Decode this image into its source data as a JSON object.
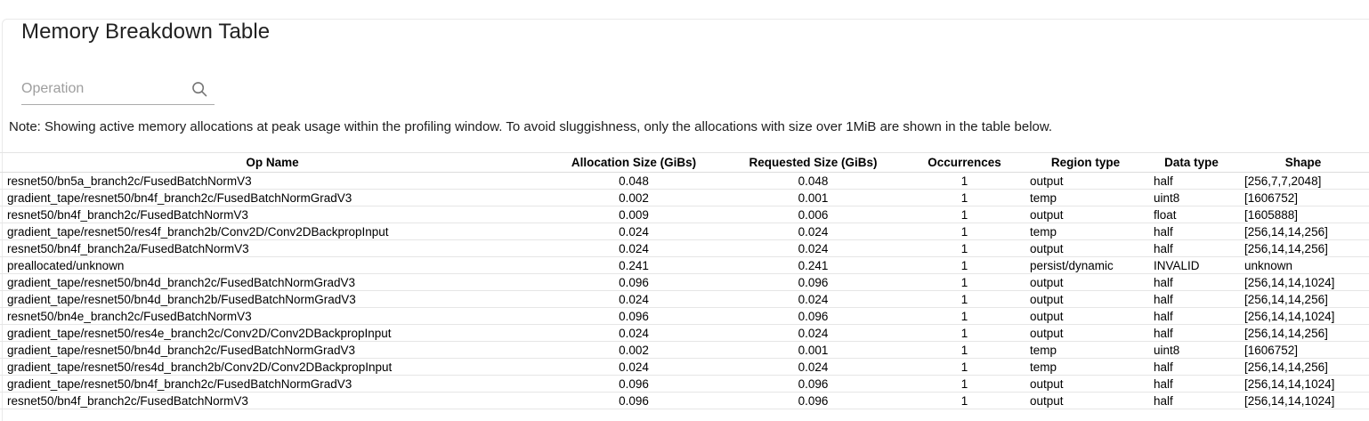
{
  "page": {
    "title": "Memory Breakdown Table"
  },
  "search": {
    "placeholder": "Operation",
    "value": "",
    "icon": "search-icon"
  },
  "note": "Note: Showing active memory allocations at peak usage within the profiling window. To avoid sluggishness, only the allocations with size over 1MiB are shown in the table below.",
  "table": {
    "columns": [
      "Op Name",
      "Allocation Size (GiBs)",
      "Requested Size (GiBs)",
      "Occurrences",
      "Region type",
      "Data type",
      "Shape"
    ],
    "rows": [
      [
        "resnet50/bn5a_branch2c/FusedBatchNormV3",
        "0.048",
        "0.048",
        "1",
        "output",
        "half",
        "[256,7,7,2048]"
      ],
      [
        "gradient_tape/resnet50/bn4f_branch2c/FusedBatchNormGradV3",
        "0.002",
        "0.001",
        "1",
        "temp",
        "uint8",
        "[1606752]"
      ],
      [
        "resnet50/bn4f_branch2c/FusedBatchNormV3",
        "0.009",
        "0.006",
        "1",
        "output",
        "float",
        "[1605888]"
      ],
      [
        "gradient_tape/resnet50/res4f_branch2b/Conv2D/Conv2DBackpropInput",
        "0.024",
        "0.024",
        "1",
        "temp",
        "half",
        "[256,14,14,256]"
      ],
      [
        "resnet50/bn4f_branch2a/FusedBatchNormV3",
        "0.024",
        "0.024",
        "1",
        "output",
        "half",
        "[256,14,14,256]"
      ],
      [
        "preallocated/unknown",
        "0.241",
        "0.241",
        "1",
        "persist/dynamic",
        "INVALID",
        "unknown"
      ],
      [
        "gradient_tape/resnet50/bn4d_branch2c/FusedBatchNormGradV3",
        "0.096",
        "0.096",
        "1",
        "output",
        "half",
        "[256,14,14,1024]"
      ],
      [
        "gradient_tape/resnet50/bn4d_branch2b/FusedBatchNormGradV3",
        "0.024",
        "0.024",
        "1",
        "output",
        "half",
        "[256,14,14,256]"
      ],
      [
        "resnet50/bn4e_branch2c/FusedBatchNormV3",
        "0.096",
        "0.096",
        "1",
        "output",
        "half",
        "[256,14,14,1024]"
      ],
      [
        "gradient_tape/resnet50/res4e_branch2c/Conv2D/Conv2DBackpropInput",
        "0.024",
        "0.024",
        "1",
        "output",
        "half",
        "[256,14,14,256]"
      ],
      [
        "gradient_tape/resnet50/bn4d_branch2c/FusedBatchNormGradV3",
        "0.002",
        "0.001",
        "1",
        "temp",
        "uint8",
        "[1606752]"
      ],
      [
        "gradient_tape/resnet50/res4d_branch2b/Conv2D/Conv2DBackpropInput",
        "0.024",
        "0.024",
        "1",
        "temp",
        "half",
        "[256,14,14,256]"
      ],
      [
        "gradient_tape/resnet50/bn4f_branch2c/FusedBatchNormGradV3",
        "0.096",
        "0.096",
        "1",
        "output",
        "half",
        "[256,14,14,1024]"
      ],
      [
        "resnet50/bn4f_branch2c/FusedBatchNormV3",
        "0.096",
        "0.096",
        "1",
        "output",
        "half",
        "[256,14,14,1024]"
      ]
    ]
  },
  "colors": {
    "title_text": "#212121",
    "body_text": "#000000",
    "placeholder_text": "#9e9e9e",
    "icon_gray": "#757575",
    "row_border": "#e6e6e6"
  }
}
